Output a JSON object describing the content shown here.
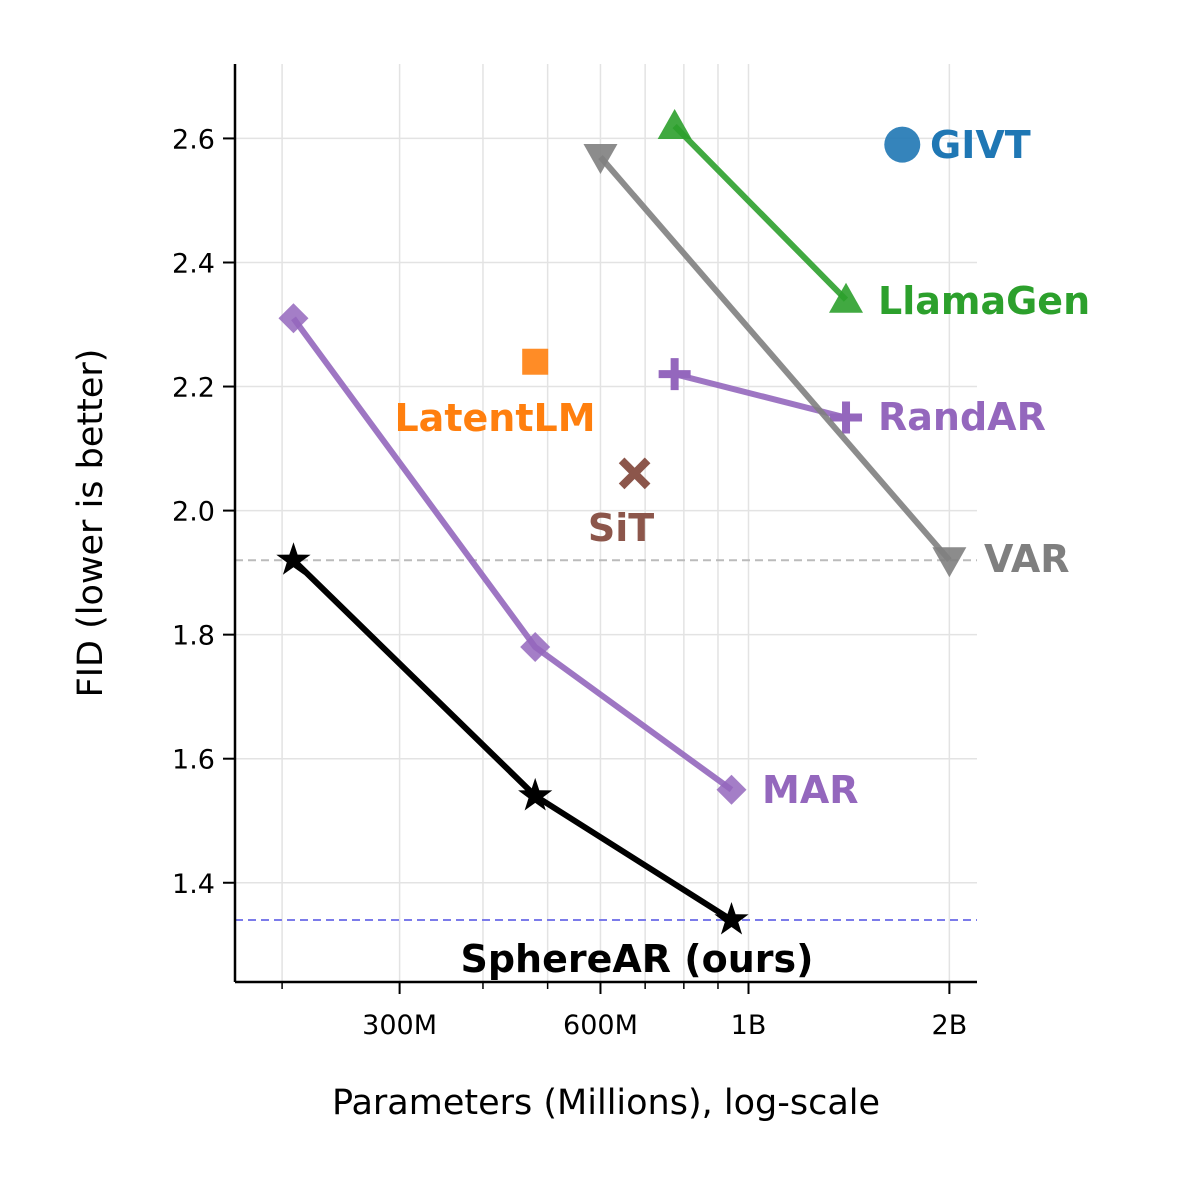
{
  "chart_data": {
    "type": "scatter",
    "xlabel": "Parameters (Millions), log-scale",
    "ylabel": "FID (lower is better)",
    "x_scale": "log",
    "xlim": [
      170,
      2200
    ],
    "ylim": [
      1.24,
      2.72
    ],
    "x_ticks": [
      {
        "value": 300,
        "label": "300M"
      },
      {
        "value": 600,
        "label": "600M"
      },
      {
        "value": 1000,
        "label": "1B"
      },
      {
        "value": 2000,
        "label": "2B"
      }
    ],
    "x_minor_ticks": [
      200,
      400,
      500,
      700,
      800,
      900
    ],
    "y_ticks": [
      {
        "value": 1.4,
        "label": "1.4"
      },
      {
        "value": 1.6,
        "label": "1.6"
      },
      {
        "value": 1.8,
        "label": "1.8"
      },
      {
        "value": 2.0,
        "label": "2.0"
      },
      {
        "value": 2.2,
        "label": "2.2"
      },
      {
        "value": 2.4,
        "label": "2.4"
      },
      {
        "value": 2.6,
        "label": "2.6"
      }
    ],
    "grid": true,
    "reference_lines": [
      {
        "y": 1.92,
        "color": "#bbbbbb"
      },
      {
        "y": 1.34,
        "color": "#7b7bea"
      }
    ],
    "series": [
      {
        "name": "SphereAR (ours)",
        "color": "#000000",
        "marker": "star",
        "bold_dark_label": true,
        "points": [
          {
            "x": 208,
            "y": 1.92
          },
          {
            "x": 479,
            "y": 1.54
          },
          {
            "x": 943,
            "y": 1.34
          }
        ]
      },
      {
        "name": "MAR",
        "color": "#9467bd",
        "marker": "diamond",
        "points": [
          {
            "x": 208,
            "y": 2.31
          },
          {
            "x": 479,
            "y": 1.78
          },
          {
            "x": 943,
            "y": 1.55
          }
        ]
      },
      {
        "name": "RandAR",
        "color": "#9467bd",
        "marker": "plus",
        "points": [
          {
            "x": 775,
            "y": 2.22
          },
          {
            "x": 1400,
            "y": 2.15
          }
        ]
      },
      {
        "name": "LlamaGen",
        "color": "#2ca02c",
        "marker": "triangle-up",
        "points": [
          {
            "x": 775,
            "y": 2.62
          },
          {
            "x": 1400,
            "y": 2.34
          }
        ]
      },
      {
        "name": "VAR",
        "color": "#7f7f7f",
        "marker": "triangle-down",
        "points": [
          {
            "x": 600,
            "y": 2.57
          },
          {
            "x": 2000,
            "y": 1.92
          }
        ]
      },
      {
        "name": "LatentLM",
        "color": "#ff7f0e",
        "marker": "square",
        "points": [
          {
            "x": 479,
            "y": 2.24
          }
        ]
      },
      {
        "name": "SiT",
        "color": "#8c564b",
        "marker": "x",
        "points": [
          {
            "x": 675,
            "y": 2.06
          }
        ]
      },
      {
        "name": "GIVT",
        "color": "#1f77b4",
        "marker": "circle",
        "points": [
          {
            "x": 1700,
            "y": 2.59
          }
        ]
      }
    ]
  }
}
